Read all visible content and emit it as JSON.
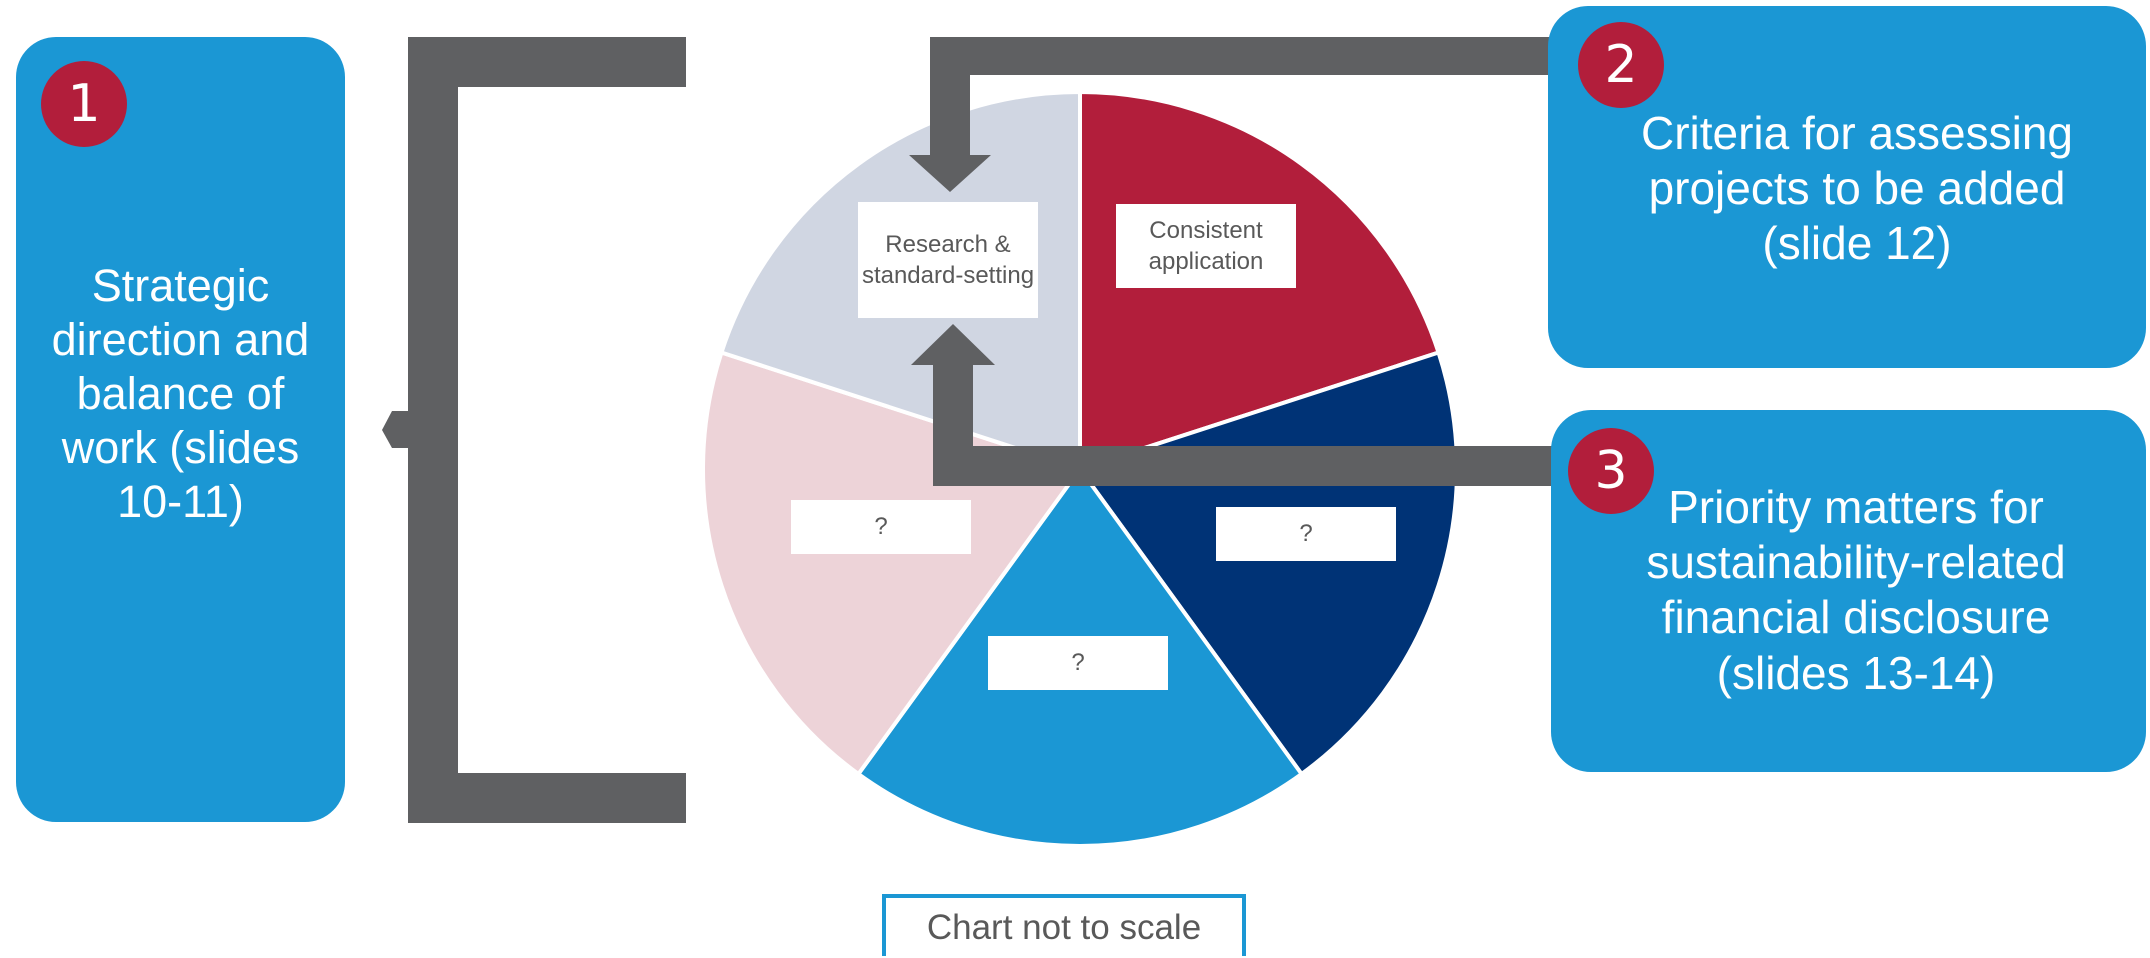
{
  "left_box": {
    "number": "1",
    "text": "Strategic direction and balance of work (slides 10-11)"
  },
  "top_right_box": {
    "number": "2",
    "text": "Criteria for assessing projects to be added (slide 12)"
  },
  "bottom_right_box": {
    "number": "3",
    "text": "Priority matters for sustainability-related financial disclosure (slides 13-14)"
  },
  "pie": {
    "slices": [
      {
        "label": "Consistent application",
        "color": "#b21e3b"
      },
      {
        "label": "?",
        "color": "#003376"
      },
      {
        "label": "?",
        "color": "#1b97d4"
      },
      {
        "label": "?",
        "color": "#edd3d8"
      },
      {
        "label": "Research & standard-setting",
        "color": "#d0d6e2"
      }
    ]
  },
  "colors": {
    "box": "#1b97d4",
    "badge": "#b21e3b",
    "arrow": "#5f6062",
    "label_text": "#595959"
  },
  "footnote": "Chart not to scale"
}
